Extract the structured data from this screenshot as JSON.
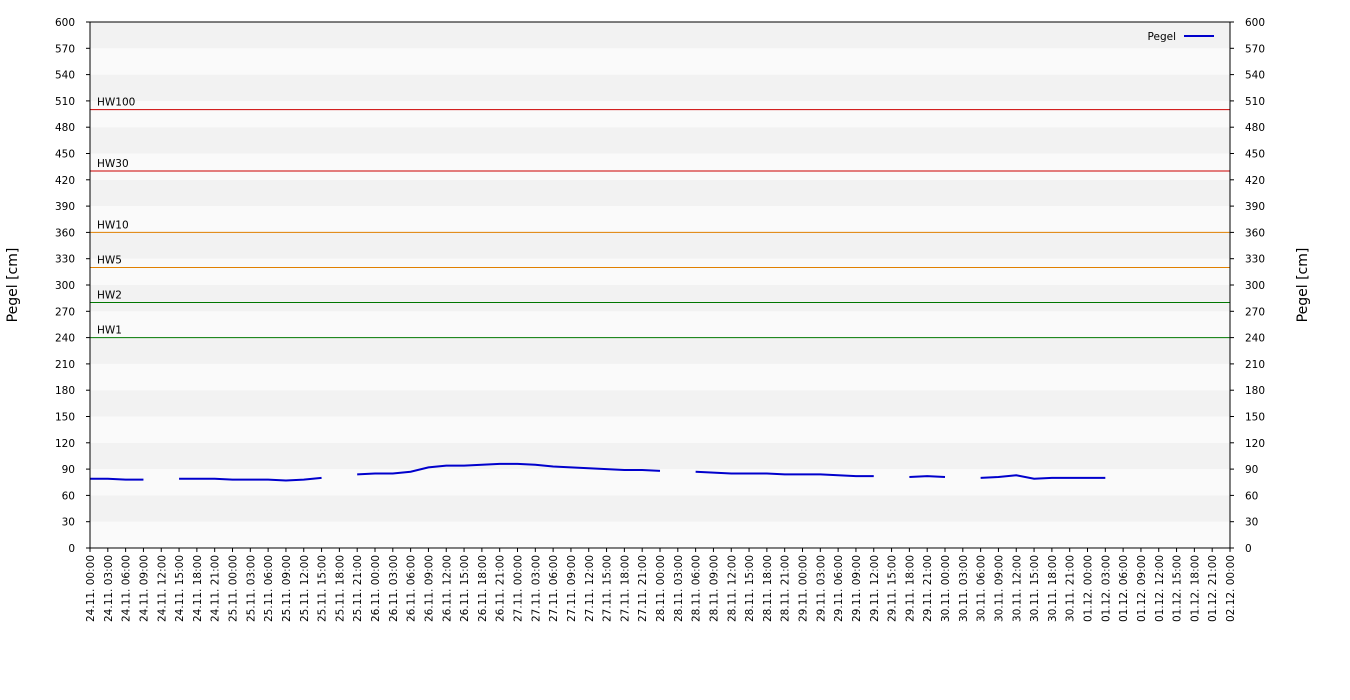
{
  "chart_data": {
    "type": "line",
    "ylabel": "Pegel [cm]",
    "y2label": "Pegel [cm]",
    "ylim": [
      0,
      600
    ],
    "yticks": [
      0,
      30,
      60,
      90,
      120,
      150,
      180,
      210,
      240,
      270,
      300,
      330,
      360,
      390,
      420,
      450,
      480,
      510,
      540,
      570,
      600
    ],
    "y2lim": [
      0,
      600
    ],
    "y2ticks": [
      0,
      30,
      60,
      90,
      120,
      150,
      180,
      210,
      240,
      270,
      300,
      330,
      360,
      390,
      420,
      450,
      480,
      510,
      540,
      570,
      600
    ],
    "legend": "top-right",
    "x": [
      "24.11. 00:00",
      "24.11. 03:00",
      "24.11. 06:00",
      "24.11. 09:00",
      "24.11. 12:00",
      "24.11. 15:00",
      "24.11. 18:00",
      "24.11. 21:00",
      "25.11. 00:00",
      "25.11. 03:00",
      "25.11. 06:00",
      "25.11. 09:00",
      "25.11. 12:00",
      "25.11. 15:00",
      "25.11. 18:00",
      "25.11. 21:00",
      "26.11. 00:00",
      "26.11. 03:00",
      "26.11. 06:00",
      "26.11. 09:00",
      "26.11. 12:00",
      "26.11. 15:00",
      "26.11. 18:00",
      "26.11. 21:00",
      "27.11. 00:00",
      "27.11. 03:00",
      "27.11. 06:00",
      "27.11. 09:00",
      "27.11. 12:00",
      "27.11. 15:00",
      "27.11. 18:00",
      "27.11. 21:00",
      "28.11. 00:00",
      "28.11. 03:00",
      "28.11. 06:00",
      "28.11. 09:00",
      "28.11. 12:00",
      "28.11. 15:00",
      "28.11. 18:00",
      "28.11. 21:00",
      "29.11. 00:00",
      "29.11. 03:00",
      "29.11. 06:00",
      "29.11. 09:00",
      "29.11. 12:00",
      "29.11. 15:00",
      "29.11. 18:00",
      "29.11. 21:00",
      "30.11. 00:00",
      "30.11. 03:00",
      "30.11. 06:00",
      "30.11. 09:00",
      "30.11. 12:00",
      "30.11. 15:00",
      "30.11. 18:00",
      "30.11. 21:00",
      "01.12. 00:00",
      "01.12. 03:00",
      "01.12. 06:00",
      "01.12. 09:00",
      "01.12. 12:00",
      "01.12. 15:00",
      "01.12. 18:00",
      "01.12. 21:00",
      "02.12. 00:00"
    ],
    "series": [
      {
        "name": "Pegel",
        "color": "#0000cc",
        "values": [
          79,
          79,
          78,
          78,
          null,
          79,
          79,
          79,
          78,
          78,
          78,
          77,
          78,
          80,
          null,
          84,
          85,
          85,
          87,
          92,
          94,
          94,
          95,
          96,
          96,
          95,
          93,
          92,
          91,
          90,
          89,
          89,
          88,
          null,
          87,
          86,
          85,
          85,
          85,
          84,
          84,
          84,
          83,
          82,
          82,
          null,
          81,
          82,
          81,
          null,
          80,
          81,
          83,
          79,
          80,
          80,
          80,
          80,
          null,
          null,
          null,
          null,
          null,
          null,
          null
        ]
      }
    ],
    "thresholds": [
      {
        "label": "HW100",
        "value": 500,
        "color": "#cc0000"
      },
      {
        "label": "HW30",
        "value": 430,
        "color": "#cc0000"
      },
      {
        "label": "HW10",
        "value": 360,
        "color": "#e08000"
      },
      {
        "label": "HW5",
        "value": 320,
        "color": "#e08000"
      },
      {
        "label": "HW2",
        "value": 280,
        "color": "#007700"
      },
      {
        "label": "HW1",
        "value": 240,
        "color": "#007700"
      }
    ]
  }
}
